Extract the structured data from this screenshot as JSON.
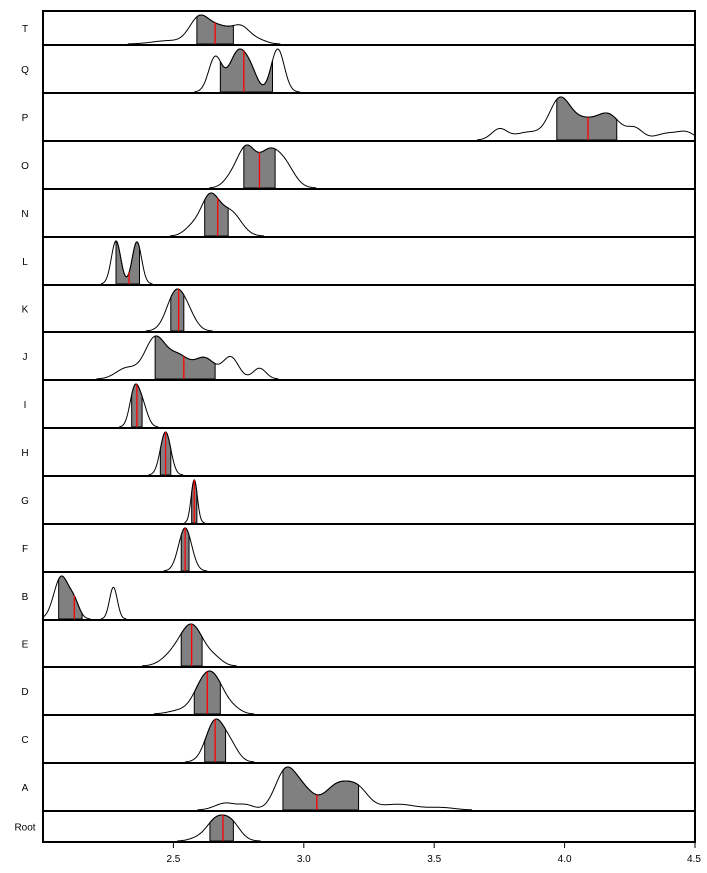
{
  "chart_data": {
    "type": "ridgeline-density",
    "x_range": [
      2.0,
      4.5
    ],
    "x_ticks": [
      2.5,
      3.0,
      3.5,
      4.0,
      4.5
    ],
    "x_tick_labels": [
      "2.5",
      "3.0",
      "3.5",
      "4.0",
      "4.5"
    ],
    "colors": {
      "shade": "#808080",
      "median": "#ff0000",
      "curve": "#000000",
      "frame": "#000000"
    },
    "rows": [
      {
        "label": "T",
        "shade": [
          2.59,
          2.73
        ],
        "median": 2.66,
        "peaks": [
          {
            "mu": 2.48,
            "sd": 0.06,
            "w": 0.12
          },
          {
            "mu": 2.6,
            "sd": 0.038,
            "w": 0.95
          },
          {
            "mu": 2.68,
            "sd": 0.04,
            "w": 0.55
          },
          {
            "mu": 2.76,
            "sd": 0.035,
            "w": 0.6
          },
          {
            "mu": 2.83,
            "sd": 0.03,
            "w": 0.12
          }
        ]
      },
      {
        "label": "Q",
        "shade": [
          2.68,
          2.88
        ],
        "median": 2.77,
        "peaks": [
          {
            "mu": 2.66,
            "sd": 0.025,
            "w": 0.8
          },
          {
            "mu": 2.75,
            "sd": 0.035,
            "w": 0.95
          },
          {
            "mu": 2.8,
            "sd": 0.025,
            "w": 0.3
          },
          {
            "mu": 2.9,
            "sd": 0.025,
            "w": 1.0
          }
        ]
      },
      {
        "label": "P",
        "shade": [
          3.97,
          4.2
        ],
        "median": 4.09,
        "peaks": [
          {
            "mu": 3.75,
            "sd": 0.03,
            "w": 0.28
          },
          {
            "mu": 3.86,
            "sd": 0.05,
            "w": 0.2
          },
          {
            "mu": 3.98,
            "sd": 0.04,
            "w": 1.0
          },
          {
            "mu": 4.07,
            "sd": 0.05,
            "w": 0.48
          },
          {
            "mu": 4.17,
            "sd": 0.045,
            "w": 0.62
          },
          {
            "mu": 4.27,
            "sd": 0.03,
            "w": 0.28
          },
          {
            "mu": 4.4,
            "sd": 0.05,
            "w": 0.18
          },
          {
            "mu": 4.47,
            "sd": 0.03,
            "w": 0.15
          }
        ]
      },
      {
        "label": "O",
        "shade": [
          2.77,
          2.89
        ],
        "median": 2.83,
        "peaks": [
          {
            "mu": 2.78,
            "sd": 0.035,
            "w": 1.0
          },
          {
            "mu": 2.86,
            "sd": 0.035,
            "w": 0.7
          },
          {
            "mu": 2.92,
            "sd": 0.04,
            "w": 0.65
          },
          {
            "mu": 2.72,
            "sd": 0.03,
            "w": 0.2
          }
        ]
      },
      {
        "label": "N",
        "shade": [
          2.62,
          2.71
        ],
        "median": 2.67,
        "peaks": [
          {
            "mu": 2.64,
            "sd": 0.035,
            "w": 1.0
          },
          {
            "mu": 2.72,
            "sd": 0.04,
            "w": 0.6
          },
          {
            "mu": 2.57,
            "sd": 0.03,
            "w": 0.2
          }
        ]
      },
      {
        "label": "L",
        "shade": [
          2.28,
          2.37
        ],
        "median": 2.33,
        "peaks": [
          {
            "mu": 2.28,
            "sd": 0.018,
            "w": 1.0
          },
          {
            "mu": 2.36,
            "sd": 0.018,
            "w": 0.98
          }
        ]
      },
      {
        "label": "K",
        "shade": [
          2.49,
          2.54
        ],
        "median": 2.52,
        "peaks": [
          {
            "mu": 2.51,
            "sd": 0.035,
            "w": 1.0
          },
          {
            "mu": 2.56,
            "sd": 0.03,
            "w": 0.3
          }
        ]
      },
      {
        "label": "J",
        "shade": [
          2.43,
          2.66
        ],
        "median": 2.54,
        "peaks": [
          {
            "mu": 2.32,
            "sd": 0.04,
            "w": 0.25
          },
          {
            "mu": 2.43,
            "sd": 0.04,
            "w": 0.95
          },
          {
            "mu": 2.52,
            "sd": 0.04,
            "w": 0.5
          },
          {
            "mu": 2.62,
            "sd": 0.04,
            "w": 0.48
          },
          {
            "mu": 2.72,
            "sd": 0.03,
            "w": 0.5
          },
          {
            "mu": 2.83,
            "sd": 0.025,
            "w": 0.25
          }
        ]
      },
      {
        "label": "I",
        "shade": [
          2.34,
          2.38
        ],
        "median": 2.36,
        "peaks": [
          {
            "mu": 2.35,
            "sd": 0.018,
            "w": 1.0
          },
          {
            "mu": 2.38,
            "sd": 0.02,
            "w": 0.65
          }
        ]
      },
      {
        "label": "H",
        "shade": [
          2.45,
          2.49
        ],
        "median": 2.47,
        "peaks": [
          {
            "mu": 2.47,
            "sd": 0.02,
            "w": 1.0
          }
        ]
      },
      {
        "label": "G",
        "shade": [
          2.57,
          2.59
        ],
        "median": 2.58,
        "peaks": [
          {
            "mu": 2.58,
            "sd": 0.012,
            "w": 1.0
          }
        ]
      },
      {
        "label": "F",
        "shade": [
          2.53,
          2.56
        ],
        "median": 2.545,
        "peaks": [
          {
            "mu": 2.545,
            "sd": 0.025,
            "w": 1.0
          }
        ]
      },
      {
        "label": "B",
        "shade": [
          2.06,
          2.15
        ],
        "median": 2.12,
        "peaks": [
          {
            "mu": 2.07,
            "sd": 0.028,
            "w": 1.0
          },
          {
            "mu": 2.12,
            "sd": 0.02,
            "w": 0.35
          },
          {
            "mu": 2.27,
            "sd": 0.015,
            "w": 0.75
          }
        ]
      },
      {
        "label": "E",
        "shade": [
          2.53,
          2.61
        ],
        "median": 2.57,
        "peaks": [
          {
            "mu": 2.57,
            "sd": 0.045,
            "w": 1.0
          },
          {
            "mu": 2.49,
            "sd": 0.04,
            "w": 0.2
          },
          {
            "mu": 2.66,
            "sd": 0.03,
            "w": 0.15
          }
        ]
      },
      {
        "label": "D",
        "shade": [
          2.58,
          2.68
        ],
        "median": 2.63,
        "peaks": [
          {
            "mu": 2.62,
            "sd": 0.04,
            "w": 1.0
          },
          {
            "mu": 2.67,
            "sd": 0.035,
            "w": 0.6
          },
          {
            "mu": 2.52,
            "sd": 0.04,
            "w": 0.1
          },
          {
            "mu": 2.73,
            "sd": 0.03,
            "w": 0.15
          }
        ]
      },
      {
        "label": "C",
        "shade": [
          2.62,
          2.7
        ],
        "median": 2.66,
        "peaks": [
          {
            "mu": 2.66,
            "sd": 0.035,
            "w": 1.0
          },
          {
            "mu": 2.72,
            "sd": 0.03,
            "w": 0.35
          }
        ]
      },
      {
        "label": "A",
        "shade": [
          2.92,
          3.21
        ],
        "median": 3.05,
        "peaks": [
          {
            "mu": 2.7,
            "sd": 0.04,
            "w": 0.18
          },
          {
            "mu": 2.78,
            "sd": 0.03,
            "w": 0.12
          },
          {
            "mu": 2.93,
            "sd": 0.04,
            "w": 1.0
          },
          {
            "mu": 3.0,
            "sd": 0.04,
            "w": 0.45
          },
          {
            "mu": 3.13,
            "sd": 0.05,
            "w": 0.65
          },
          {
            "mu": 3.21,
            "sd": 0.04,
            "w": 0.45
          },
          {
            "mu": 3.36,
            "sd": 0.07,
            "w": 0.15
          },
          {
            "mu": 3.53,
            "sd": 0.05,
            "w": 0.06
          }
        ]
      },
      {
        "label": "Root",
        "shade": [
          2.64,
          2.73
        ],
        "median": 2.69,
        "peaks": [
          {
            "mu": 2.66,
            "sd": 0.035,
            "w": 0.9
          },
          {
            "mu": 2.72,
            "sd": 0.035,
            "w": 0.85
          },
          {
            "mu": 2.59,
            "sd": 0.03,
            "w": 0.12
          }
        ]
      }
    ]
  }
}
